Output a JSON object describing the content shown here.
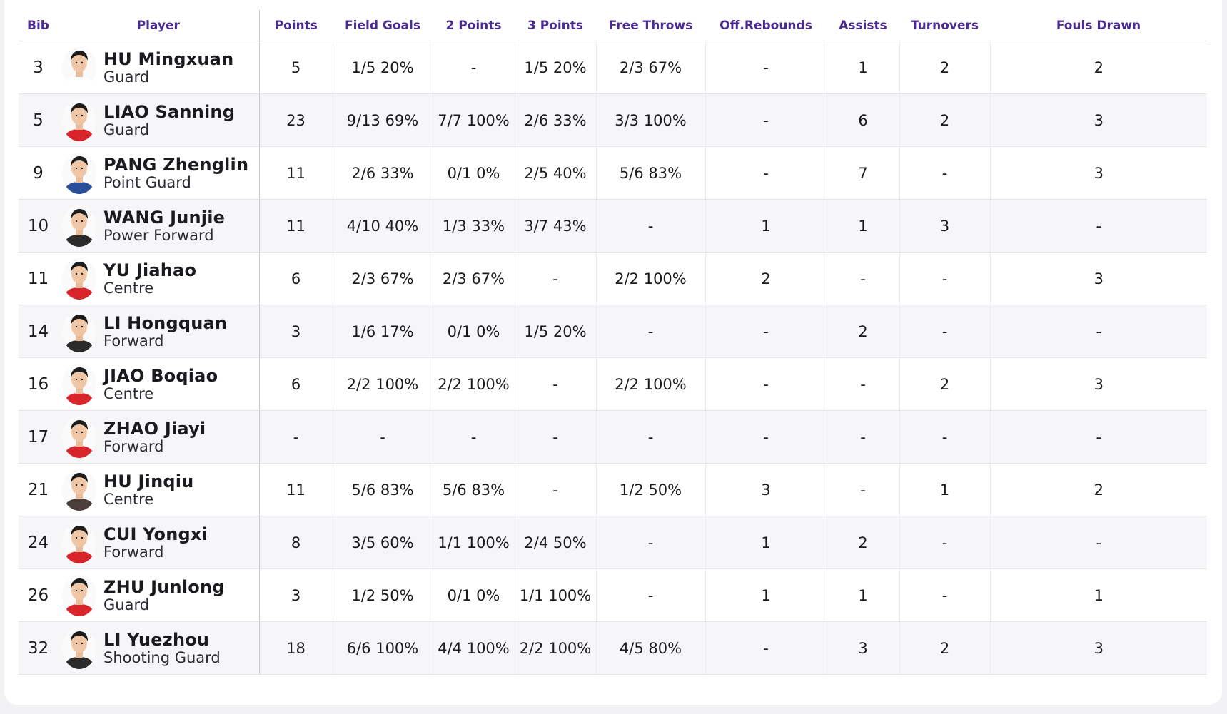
{
  "columns": {
    "bib": "Bib",
    "player": "Player",
    "points": "Points",
    "field_goals": "Field Goals",
    "two_points": "2 Points",
    "three_points": "3 Points",
    "free_throws": "Free Throws",
    "off_rebounds": "Off.Rebounds",
    "assists": "Assists",
    "turnovers": "Turnovers",
    "fouls_drawn": "Fouls Drawn"
  },
  "colors": {
    "header_text": "#4a2c91",
    "row_alt_bg": "#f6f6f8"
  },
  "rows": [
    {
      "bib": "3",
      "name": "HU Mingxuan",
      "position": "Guard",
      "jersey": "#ffffff",
      "points": "5",
      "field_goals": "1/5 20%",
      "two_points": "-",
      "three_points": "1/5 20%",
      "free_throws": "2/3 67%",
      "off_rebounds": "-",
      "assists": "1",
      "turnovers": "2",
      "fouls_drawn": "2"
    },
    {
      "bib": "5",
      "name": "LIAO Sanning",
      "position": "Guard",
      "jersey": "#d7252b",
      "points": "23",
      "field_goals": "9/13 69%",
      "two_points": "7/7 100%",
      "three_points": "2/6 33%",
      "free_throws": "3/3 100%",
      "off_rebounds": "-",
      "assists": "6",
      "turnovers": "2",
      "fouls_drawn": "3"
    },
    {
      "bib": "9",
      "name": "PANG Zhenglin",
      "position": "Point Guard",
      "jersey": "#2a4f9a",
      "points": "11",
      "field_goals": "2/6 33%",
      "two_points": "0/1 0%",
      "three_points": "2/5 40%",
      "free_throws": "5/6 83%",
      "off_rebounds": "-",
      "assists": "7",
      "turnovers": "-",
      "fouls_drawn": "3"
    },
    {
      "bib": "10",
      "name": "WANG Junjie",
      "position": "Power Forward",
      "jersey": "#2b2b2b",
      "points": "11",
      "field_goals": "4/10 40%",
      "two_points": "1/3 33%",
      "three_points": "3/7 43%",
      "free_throws": "-",
      "off_rebounds": "1",
      "assists": "1",
      "turnovers": "3",
      "fouls_drawn": "-"
    },
    {
      "bib": "11",
      "name": "YU Jiahao",
      "position": "Centre",
      "jersey": "#d7252b",
      "points": "6",
      "field_goals": "2/3 67%",
      "two_points": "2/3 67%",
      "three_points": "-",
      "free_throws": "2/2 100%",
      "off_rebounds": "2",
      "assists": "-",
      "turnovers": "-",
      "fouls_drawn": "3"
    },
    {
      "bib": "14",
      "name": "LI Hongquan",
      "position": "Forward",
      "jersey": "#2b2b2b",
      "points": "3",
      "field_goals": "1/6 17%",
      "two_points": "0/1 0%",
      "three_points": "1/5 20%",
      "free_throws": "-",
      "off_rebounds": "-",
      "assists": "2",
      "turnovers": "-",
      "fouls_drawn": "-"
    },
    {
      "bib": "16",
      "name": "JIAO Boqiao",
      "position": "Centre",
      "jersey": "#d7252b",
      "points": "6",
      "field_goals": "2/2 100%",
      "two_points": "2/2 100%",
      "three_points": "-",
      "free_throws": "2/2 100%",
      "off_rebounds": "-",
      "assists": "-",
      "turnovers": "2",
      "fouls_drawn": "3"
    },
    {
      "bib": "17",
      "name": "ZHAO Jiayi",
      "position": "Forward",
      "jersey": "#d7252b",
      "points": "-",
      "field_goals": "-",
      "two_points": "-",
      "three_points": "-",
      "free_throws": "-",
      "off_rebounds": "-",
      "assists": "-",
      "turnovers": "-",
      "fouls_drawn": "-"
    },
    {
      "bib": "21",
      "name": "HU Jinqiu",
      "position": "Centre",
      "jersey": "#4a3f3a",
      "points": "11",
      "field_goals": "5/6 83%",
      "two_points": "5/6 83%",
      "three_points": "-",
      "free_throws": "1/2 50%",
      "off_rebounds": "3",
      "assists": "-",
      "turnovers": "1",
      "fouls_drawn": "2"
    },
    {
      "bib": "24",
      "name": "CUI Yongxi",
      "position": "Forward",
      "jersey": "#d7252b",
      "points": "8",
      "field_goals": "3/5 60%",
      "two_points": "1/1 100%",
      "three_points": "2/4 50%",
      "free_throws": "-",
      "off_rebounds": "1",
      "assists": "2",
      "turnovers": "-",
      "fouls_drawn": "-"
    },
    {
      "bib": "26",
      "name": "ZHU Junlong",
      "position": "Guard",
      "jersey": "#d7252b",
      "points": "3",
      "field_goals": "1/2 50%",
      "two_points": "0/1 0%",
      "three_points": "1/1 100%",
      "free_throws": "-",
      "off_rebounds": "1",
      "assists": "1",
      "turnovers": "-",
      "fouls_drawn": "1"
    },
    {
      "bib": "32",
      "name": "LI Yuezhou",
      "position": "Shooting Guard",
      "jersey": "#2b2b2b",
      "points": "18",
      "field_goals": "6/6 100%",
      "two_points": "4/4 100%",
      "three_points": "2/2 100%",
      "free_throws": "4/5 80%",
      "off_rebounds": "-",
      "assists": "3",
      "turnovers": "2",
      "fouls_drawn": "3"
    }
  ]
}
